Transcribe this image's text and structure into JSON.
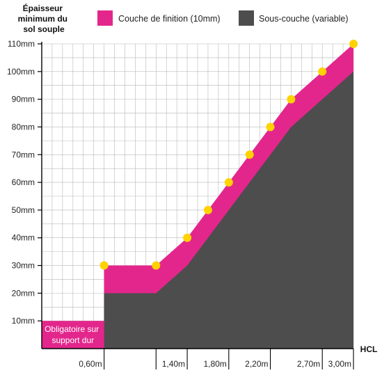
{
  "chart_data": {
    "type": "area",
    "ylabel": [
      "Épaisseur",
      "minimum du",
      "sol souple"
    ],
    "xlabel": "HCL",
    "ylim": [
      0,
      110
    ],
    "xlim": [
      0,
      3.0
    ],
    "y_ticks": [
      10,
      20,
      30,
      40,
      50,
      60,
      70,
      80,
      90,
      100,
      110
    ],
    "y_tick_labels": [
      "10mm",
      "20mm",
      "30mm",
      "40mm",
      "50mm",
      "60mm",
      "70mm",
      "80mm",
      "90mm",
      "100mm",
      "110mm"
    ],
    "x_ticks": [
      0.6,
      1.1,
      1.4,
      1.8,
      2.2,
      2.7,
      3.0
    ],
    "x_tick_labels": [
      "0,60m",
      "",
      "1,40m",
      "1,80m",
      "2,20m",
      "2,70m",
      "3,00m"
    ],
    "grid": true,
    "legend_position": "top",
    "series": [
      {
        "name": "Sous-couche (variable)",
        "color": "#4d4d4d",
        "x": [
          0.6,
          0.6,
          1.1,
          1.4,
          2.4,
          3.0
        ],
        "y": [
          0,
          20,
          20,
          30,
          80,
          100
        ]
      },
      {
        "name": "Couche de finition (10mm)",
        "color": "#e3268c",
        "x": [
          0.6,
          0.6,
          1.1,
          1.4,
          1.6,
          1.8,
          2.0,
          2.2,
          2.4,
          2.7,
          3.0
        ],
        "y": [
          0,
          30,
          30,
          40,
          50,
          60,
          70,
          80,
          90,
          100,
          110
        ]
      }
    ],
    "points": {
      "color": "#ffd200",
      "x": [
        0.6,
        1.1,
        1.4,
        1.6,
        1.8,
        2.0,
        2.2,
        2.4,
        2.7,
        3.0
      ],
      "y": [
        30,
        30,
        40,
        50,
        60,
        70,
        80,
        90,
        100,
        110
      ]
    },
    "region_note": {
      "text": [
        "Obligatoire sur",
        "support dur"
      ],
      "color": "#e3268c",
      "x_range": [
        0,
        0.6
      ],
      "y_range": [
        0,
        10
      ]
    }
  }
}
